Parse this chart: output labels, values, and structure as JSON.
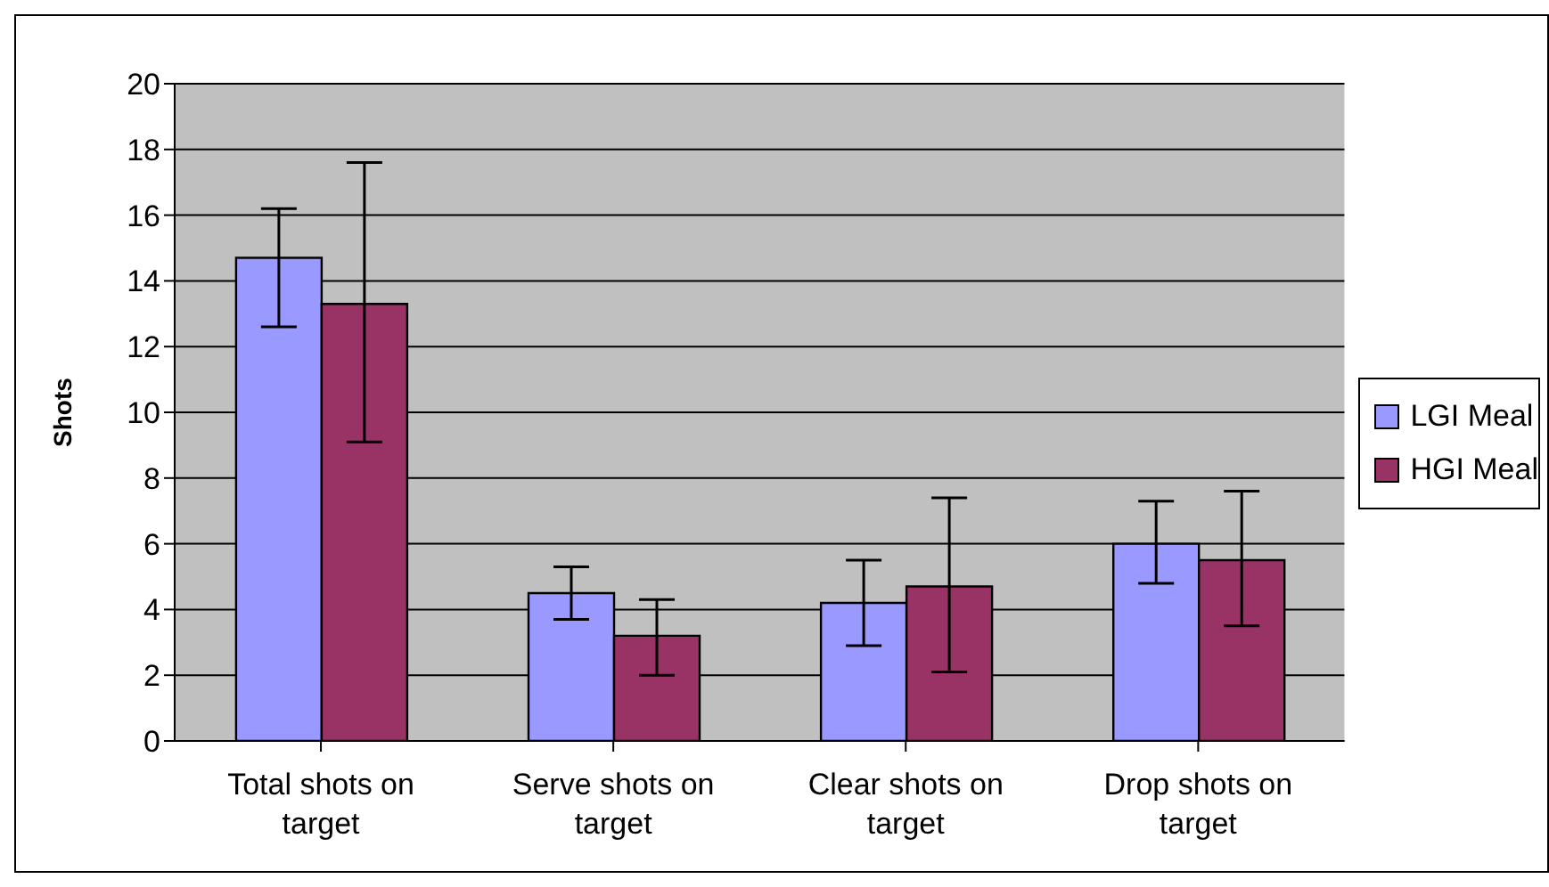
{
  "chart_data": {
    "type": "bar",
    "ylabel": "Shots",
    "categories": [
      "Total shots on target",
      "Serve shots on target",
      "Clear shots on target",
      "Drop shots on target"
    ],
    "series": [
      {
        "name": "LGI Meal",
        "color": "#9999ff",
        "values": [
          14.7,
          4.5,
          4.2,
          6.0
        ],
        "errors": [
          [
            12.6,
            16.2
          ],
          [
            3.7,
            5.3
          ],
          [
            2.9,
            5.5
          ],
          [
            4.8,
            7.3
          ]
        ]
      },
      {
        "name": "HGI Meal",
        "color": "#993366",
        "values": [
          13.3,
          3.2,
          4.7,
          5.5
        ],
        "errors": [
          [
            9.1,
            17.6
          ],
          [
            2.0,
            4.3
          ],
          [
            2.1,
            7.4
          ],
          [
            3.5,
            7.6
          ]
        ]
      }
    ],
    "ylim": [
      0,
      20
    ],
    "yticks": [
      0,
      2,
      4,
      6,
      8,
      10,
      12,
      14,
      16,
      18,
      20
    ],
    "grid": "y",
    "legend": "right"
  }
}
